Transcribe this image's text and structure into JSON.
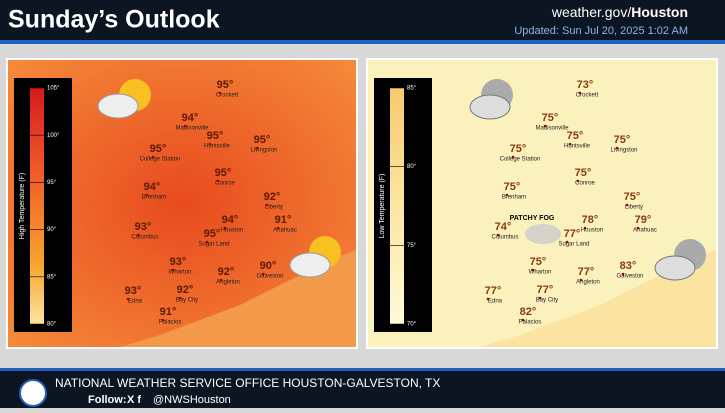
{
  "header": {
    "title": "Sunday’s Outlook",
    "site_prefix": "weather.gov/",
    "site_office": "Houston",
    "updated": "Updated: Sun Jul 20, 2025 1:02 AM"
  },
  "high_map": {
    "legend_title": "High Temperature (F)",
    "legend_ticks": [
      "105°",
      "100°",
      "95°",
      "90°",
      "85°",
      "80°"
    ]
  },
  "low_map": {
    "legend_title": "Low Temperature (F)",
    "legend_ticks": [
      "85°",
      "80°",
      "75°",
      "70°"
    ],
    "fog_label": "PATCHY FOG"
  },
  "cities": [
    {
      "name": "Crockett",
      "high": "95°",
      "low": "73°"
    },
    {
      "name": "Madisonville",
      "high": "94°",
      "low": "75°"
    },
    {
      "name": "Huntsville",
      "high": "95°",
      "low": "75°"
    },
    {
      "name": "Livingston",
      "high": "95°",
      "low": "75°"
    },
    {
      "name": "College Station",
      "high": "95°",
      "low": "75°"
    },
    {
      "name": "Brenham",
      "high": "94°",
      "low": "75°"
    },
    {
      "name": "Conroe",
      "high": "95°",
      "low": "75°"
    },
    {
      "name": "Liberty",
      "high": "92°",
      "low": "75°"
    },
    {
      "name": "Anahuac",
      "high": "91°",
      "low": "79°"
    },
    {
      "name": "Columbus",
      "high": "93°",
      "low": "74°"
    },
    {
      "name": "Houston",
      "high": "94°",
      "low": "78°"
    },
    {
      "name": "Sugar Land",
      "high": "95°",
      "low": "77°"
    },
    {
      "name": "Wharton",
      "high": "93°",
      "low": "75°"
    },
    {
      "name": "Angleton",
      "high": "92°",
      "low": "77°"
    },
    {
      "name": "Galveston",
      "high": "90°",
      "low": "83°"
    },
    {
      "name": "Edna",
      "high": "93°",
      "low": "77°"
    },
    {
      "name": "Bay City",
      "high": "92°",
      "low": "77°"
    },
    {
      "name": "Palacios",
      "high": "91°",
      "low": "82°"
    }
  ],
  "footer": {
    "office": "NATIONAL WEATHER SERVICE OFFICE HOUSTON-GALVESTON, TX",
    "follow": "Follow:",
    "handle": "@NWSHouston"
  }
}
